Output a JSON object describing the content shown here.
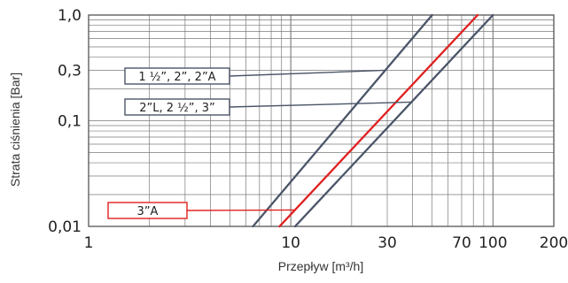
{
  "chart_data": {
    "type": "line",
    "xscale": "log",
    "yscale": "log",
    "xlim": [
      1,
      200
    ],
    "ylim": [
      0.01,
      1.0
    ],
    "xlabel": "Przepływ [m³/h]",
    "ylabel": "Strata ciśnienia [Bar]",
    "grid": true,
    "x_ticks": [
      {
        "value": 1,
        "label": "1"
      },
      {
        "value": 10,
        "label": "10"
      },
      {
        "value": 30,
        "label": "30"
      },
      {
        "value": 70,
        "label": "70"
      },
      {
        "value": 100,
        "label": "100"
      },
      {
        "value": 200,
        "label": "200"
      }
    ],
    "y_ticks": [
      {
        "value": 0.01,
        "label": "0,01"
      },
      {
        "value": 0.1,
        "label": "0,1"
      },
      {
        "value": 0.3,
        "label": "0,3"
      },
      {
        "value": 1.0,
        "label": "1,0"
      }
    ],
    "series": [
      {
        "name": "1 ½”, 2”, 2”A",
        "color": "#4a5568",
        "x": [
          6.5,
          50
        ],
        "y": [
          0.01,
          1.0
        ]
      },
      {
        "name": "2”L, 2 ½”, 3”",
        "color": "#4a5568",
        "x": [
          10.5,
          100
        ],
        "y": [
          0.01,
          1.0
        ]
      },
      {
        "name": "3”A",
        "color": "#e02020",
        "x": [
          8.8,
          84
        ],
        "y": [
          0.01,
          1.0
        ]
      }
    ],
    "annotations": [
      {
        "text": "1 ½”, 2”, 2”A",
        "series": 0,
        "color": "#4a5568"
      },
      {
        "text": "2”L, 2 ½”, 3”",
        "series": 1,
        "color": "#4a5568"
      },
      {
        "text": "3”A",
        "series": 2,
        "color": "#e02020"
      }
    ]
  }
}
